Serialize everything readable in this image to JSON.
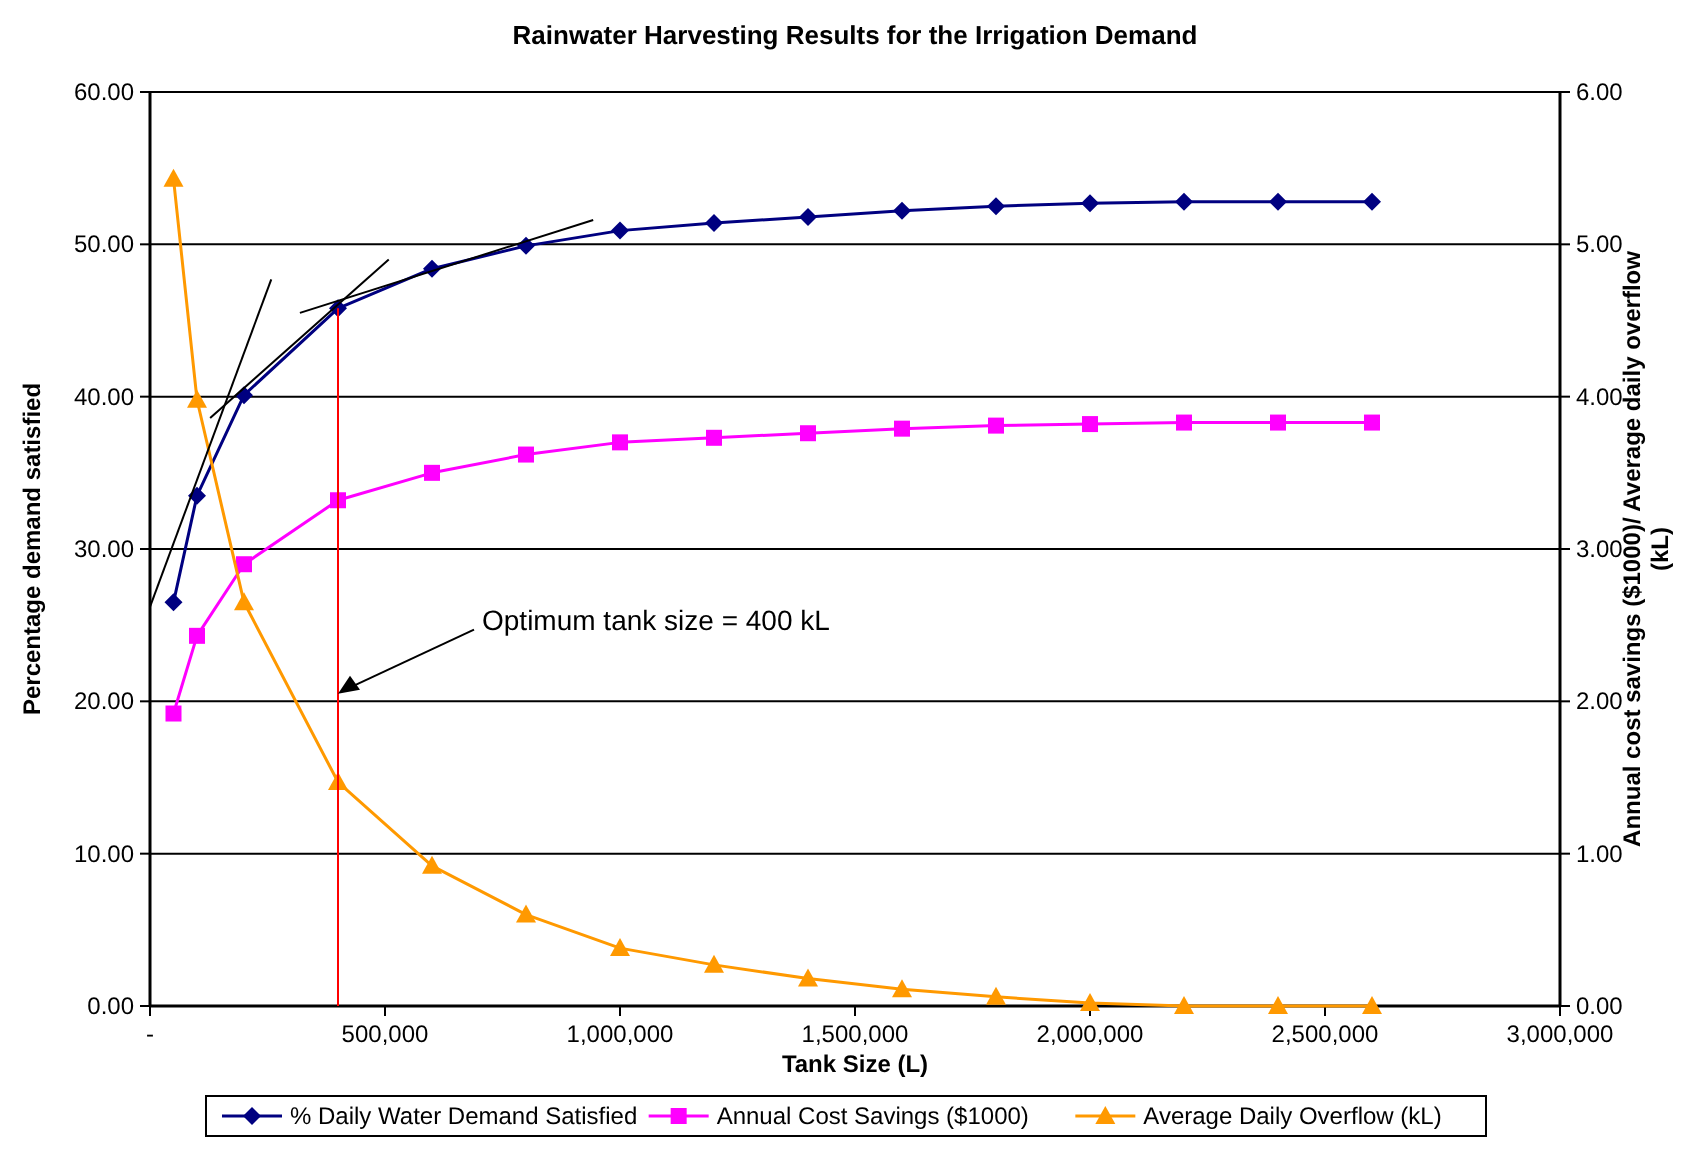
{
  "chart_data": {
    "type": "line",
    "title": "Rainwater Harvesting Results for the Irrigation Demand",
    "xlabel": "Tank Size (L)",
    "ylabel": "Percentage demand satisfied",
    "y2label": "Annual cost savings ($1000)/ Average daily overflow (kL)",
    "x": [
      50000,
      100000,
      200000,
      400000,
      600000,
      800000,
      1000000,
      1200000,
      1400000,
      1600000,
      1800000,
      2000000,
      2200000,
      2400000,
      2600000
    ],
    "series": [
      {
        "name": "% Daily Water Demand Satisfied",
        "color": "#000080",
        "marker": "diamond",
        "values": [
          26.5,
          33.5,
          40.1,
          45.8,
          48.4,
          49.9,
          50.9,
          51.4,
          51.8,
          52.2,
          52.5,
          52.7,
          52.8,
          52.8,
          52.8
        ]
      },
      {
        "name": "Annual Cost Savings ($1000)",
        "color": "#ff00ff",
        "marker": "square",
        "axis": "y2",
        "values": [
          1.92,
          2.43,
          2.9,
          3.32,
          3.5,
          3.62,
          3.7,
          3.73,
          3.76,
          3.79,
          3.81,
          3.82,
          3.83,
          3.83,
          3.83
        ]
      },
      {
        "name": "Average Daily Overflow (kL)",
        "color": "#ff9900",
        "marker": "triangle",
        "axis": "y2",
        "values": [
          5.43,
          3.98,
          2.65,
          1.47,
          0.92,
          0.6,
          0.38,
          0.27,
          0.18,
          0.11,
          0.06,
          0.02,
          0,
          0,
          0
        ]
      },
      {
        "color": "#000000",
        "marker": "none",
        "x": [
          0,
          258000
        ],
        "values": [
          26.2,
          47.7
        ]
      },
      {
        "color": "#000000",
        "marker": "none",
        "x": [
          128000,
          508000
        ],
        "values": [
          38.6,
          49
        ]
      },
      {
        "color": "#000000",
        "marker": "none",
        "x": [
          319000,
          943000
        ],
        "values": [
          45.5,
          51.6
        ]
      },
      {
        "color": "#ff0000",
        "marker": "none",
        "x": [
          400000,
          400000
        ],
        "values": [
          0,
          45.8
        ]
      }
    ],
    "xlim": [
      0,
      3000000
    ],
    "xticks": [
      {
        "value": 0,
        "label": "-"
      },
      {
        "value": 500000,
        "label": "500,000"
      },
      {
        "value": 1000000,
        "label": "1,000,000"
      },
      {
        "value": 1500000,
        "label": "1,500,000"
      },
      {
        "value": 2000000,
        "label": "2,000,000"
      },
      {
        "value": 2500000,
        "label": "2,500,000"
      },
      {
        "value": 3000000,
        "label": "3,000,000"
      }
    ],
    "ylim": [
      0,
      60
    ],
    "yticks": [
      {
        "value": 0,
        "label": "0.00"
      },
      {
        "value": 10,
        "label": "10.00"
      },
      {
        "value": 20,
        "label": "20.00"
      },
      {
        "value": 30,
        "label": "30.00"
      },
      {
        "value": 40,
        "label": "40.00"
      },
      {
        "value": 50,
        "label": "50.00"
      },
      {
        "value": 60,
        "label": "60.00"
      }
    ],
    "y2lim": [
      0,
      6
    ],
    "y2ticks": [
      {
        "value": 0,
        "label": "0.00"
      },
      {
        "value": 1,
        "label": "1.00"
      },
      {
        "value": 2,
        "label": "2.00"
      },
      {
        "value": 3,
        "label": "3.00"
      },
      {
        "value": 4,
        "label": "4.00"
      },
      {
        "value": 5,
        "label": "5.00"
      },
      {
        "value": 6,
        "label": "6.00"
      }
    ],
    "annotations": [
      {
        "text": "Optimum tank size = 400 kL",
        "x": 400000,
        "y": 20.5
      }
    ],
    "grid": "y",
    "legend": "bottom"
  }
}
